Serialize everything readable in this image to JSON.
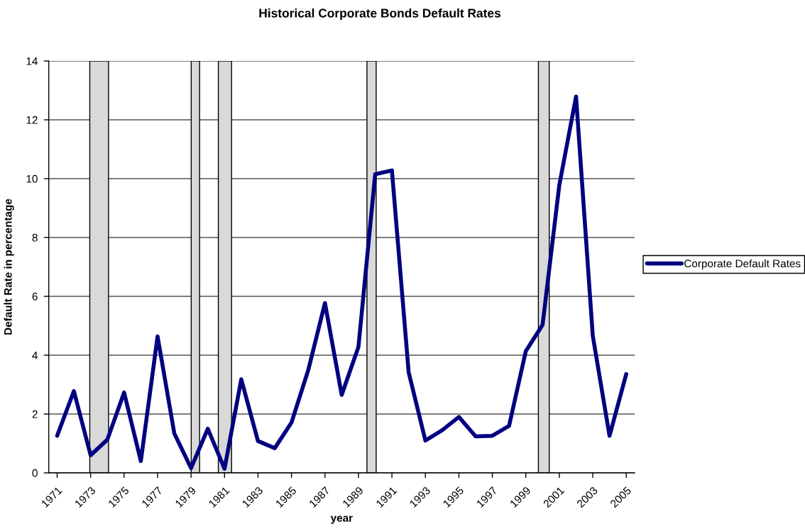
{
  "chart_data": {
    "type": "line",
    "title": "Historical Corporate Bonds Default Rates",
    "xlabel": "year",
    "ylabel": "Default Rate in percentage",
    "x": [
      1971,
      1972,
      1973,
      1974,
      1975,
      1976,
      1977,
      1978,
      1979,
      1980,
      1981,
      1982,
      1983,
      1984,
      1985,
      1986,
      1987,
      1988,
      1989,
      1990,
      1991,
      1992,
      1993,
      1994,
      1995,
      1996,
      1997,
      1998,
      1999,
      2000,
      2001,
      2002,
      2003,
      2004,
      2005
    ],
    "series": [
      {
        "name": "Corporate Default Rates",
        "color": "#000080",
        "values": [
          1.26,
          2.78,
          0.6,
          1.13,
          2.73,
          0.4,
          4.64,
          1.34,
          0.16,
          1.5,
          0.14,
          3.18,
          1.08,
          0.84,
          1.71,
          3.49,
          5.77,
          2.65,
          4.28,
          10.15,
          10.28,
          3.42,
          1.1,
          1.45,
          1.9,
          1.24,
          1.26,
          1.6,
          4.14,
          5.03,
          9.78,
          12.79,
          4.66,
          1.26,
          3.36
        ]
      }
    ],
    "xlim": [
      1970.5,
      2005.5
    ],
    "xticks": [
      1971,
      1973,
      1975,
      1977,
      1979,
      1981,
      1983,
      1985,
      1987,
      1989,
      1991,
      1993,
      1995,
      1997,
      1999,
      2001,
      2003,
      2005
    ],
    "ylim": [
      0,
      14
    ],
    "yticks": [
      0,
      2,
      4,
      6,
      8,
      10,
      12,
      14
    ],
    "grid": "y",
    "legend": "right",
    "line_style": "solid",
    "bands": [
      {
        "axis": "x",
        "from": 1972.95,
        "to": 1974.07,
        "color": "#d9d9d9"
      },
      {
        "axis": "x",
        "from": 1979.01,
        "to": 1979.51,
        "color": "#d9d9d9"
      },
      {
        "axis": "x",
        "from": 1980.63,
        "to": 1981.42,
        "color": "#d9d9d9"
      },
      {
        "axis": "x",
        "from": 1989.51,
        "to": 1990.06,
        "color": "#d9d9d9"
      },
      {
        "axis": "x",
        "from": 1999.75,
        "to": 2000.4,
        "color": "#d9d9d9"
      }
    ]
  }
}
